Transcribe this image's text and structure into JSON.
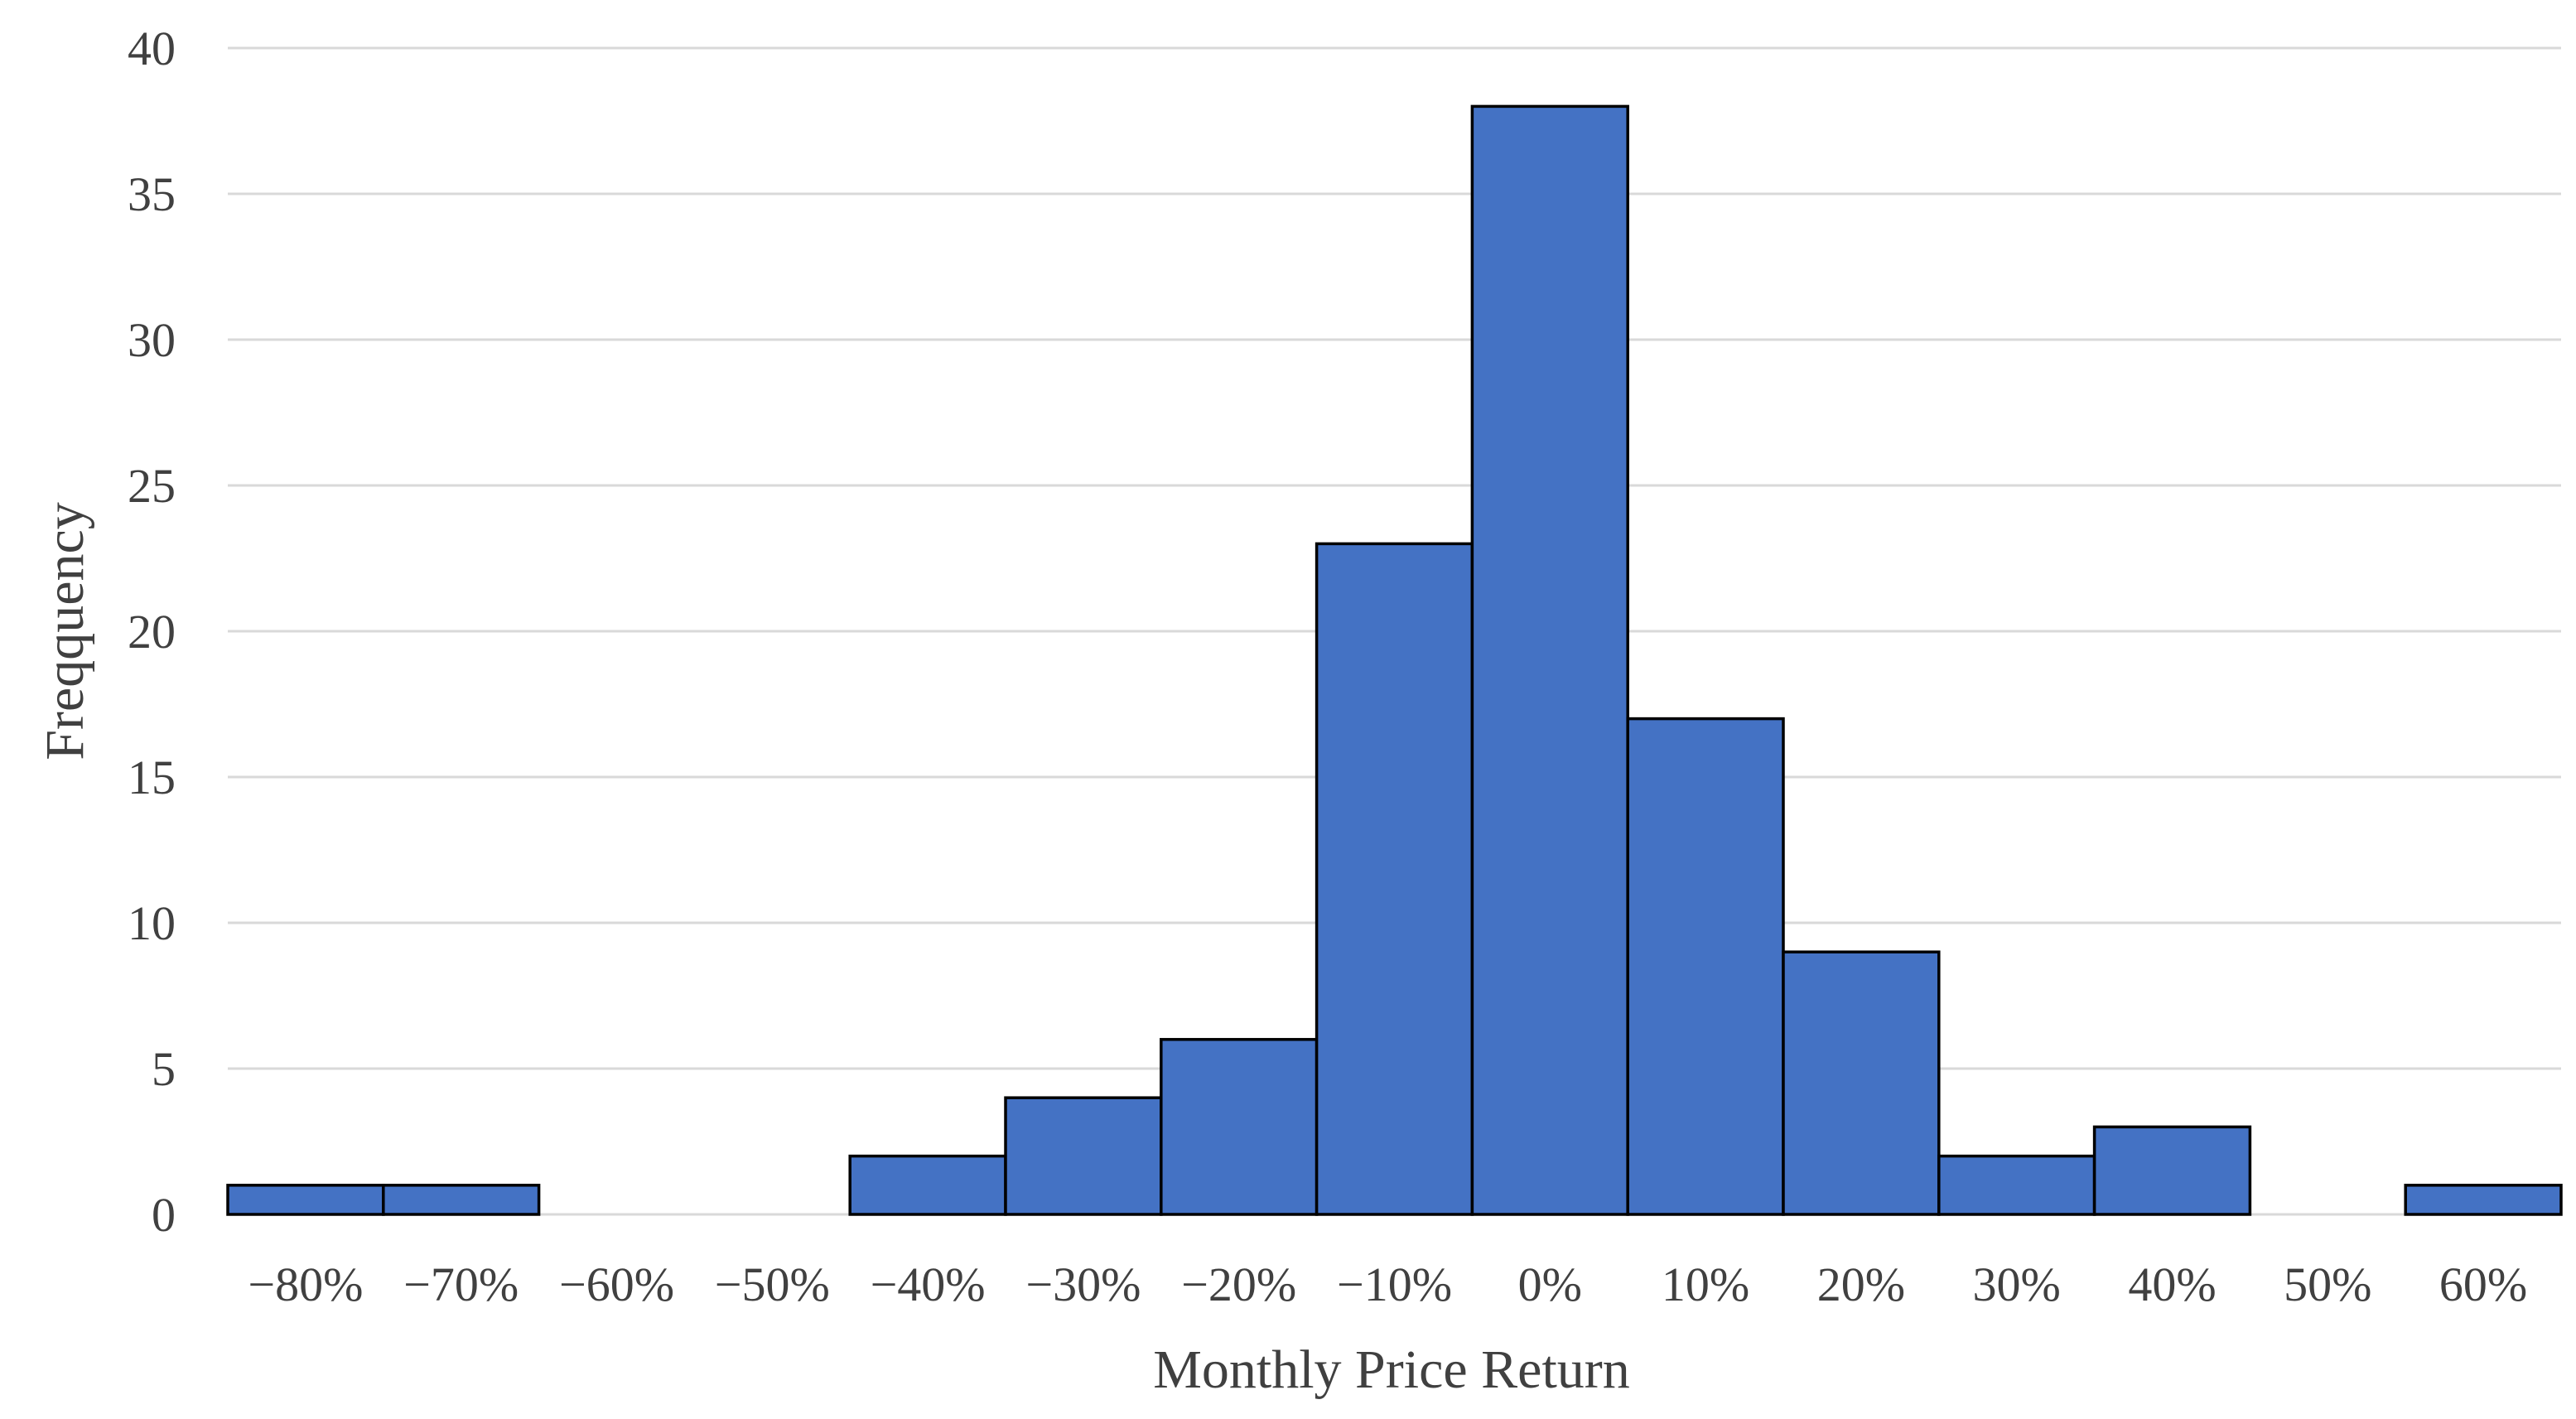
{
  "chart_data": {
    "type": "bar",
    "categories": [
      "−80%",
      "−70%",
      "−60%",
      "−50%",
      "−40%",
      "−30%",
      "−20%",
      "−10%",
      "0%",
      "10%",
      "20%",
      "30%",
      "40%",
      "50%",
      "60%"
    ],
    "values": [
      1,
      1,
      0,
      0,
      2,
      4,
      6,
      23,
      38,
      17,
      9,
      2,
      3,
      0,
      1
    ],
    "xlabel": "Monthly Price Return",
    "ylabel": "Freqquency",
    "ylim": [
      0,
      40
    ],
    "yticks": [
      0,
      5,
      10,
      15,
      20,
      25,
      30,
      35,
      40
    ],
    "grid": true,
    "bar_color": "#4472c4",
    "bar_edge_color": "#000000",
    "grid_color": "#d9d9d9",
    "text_color": "#404040"
  }
}
